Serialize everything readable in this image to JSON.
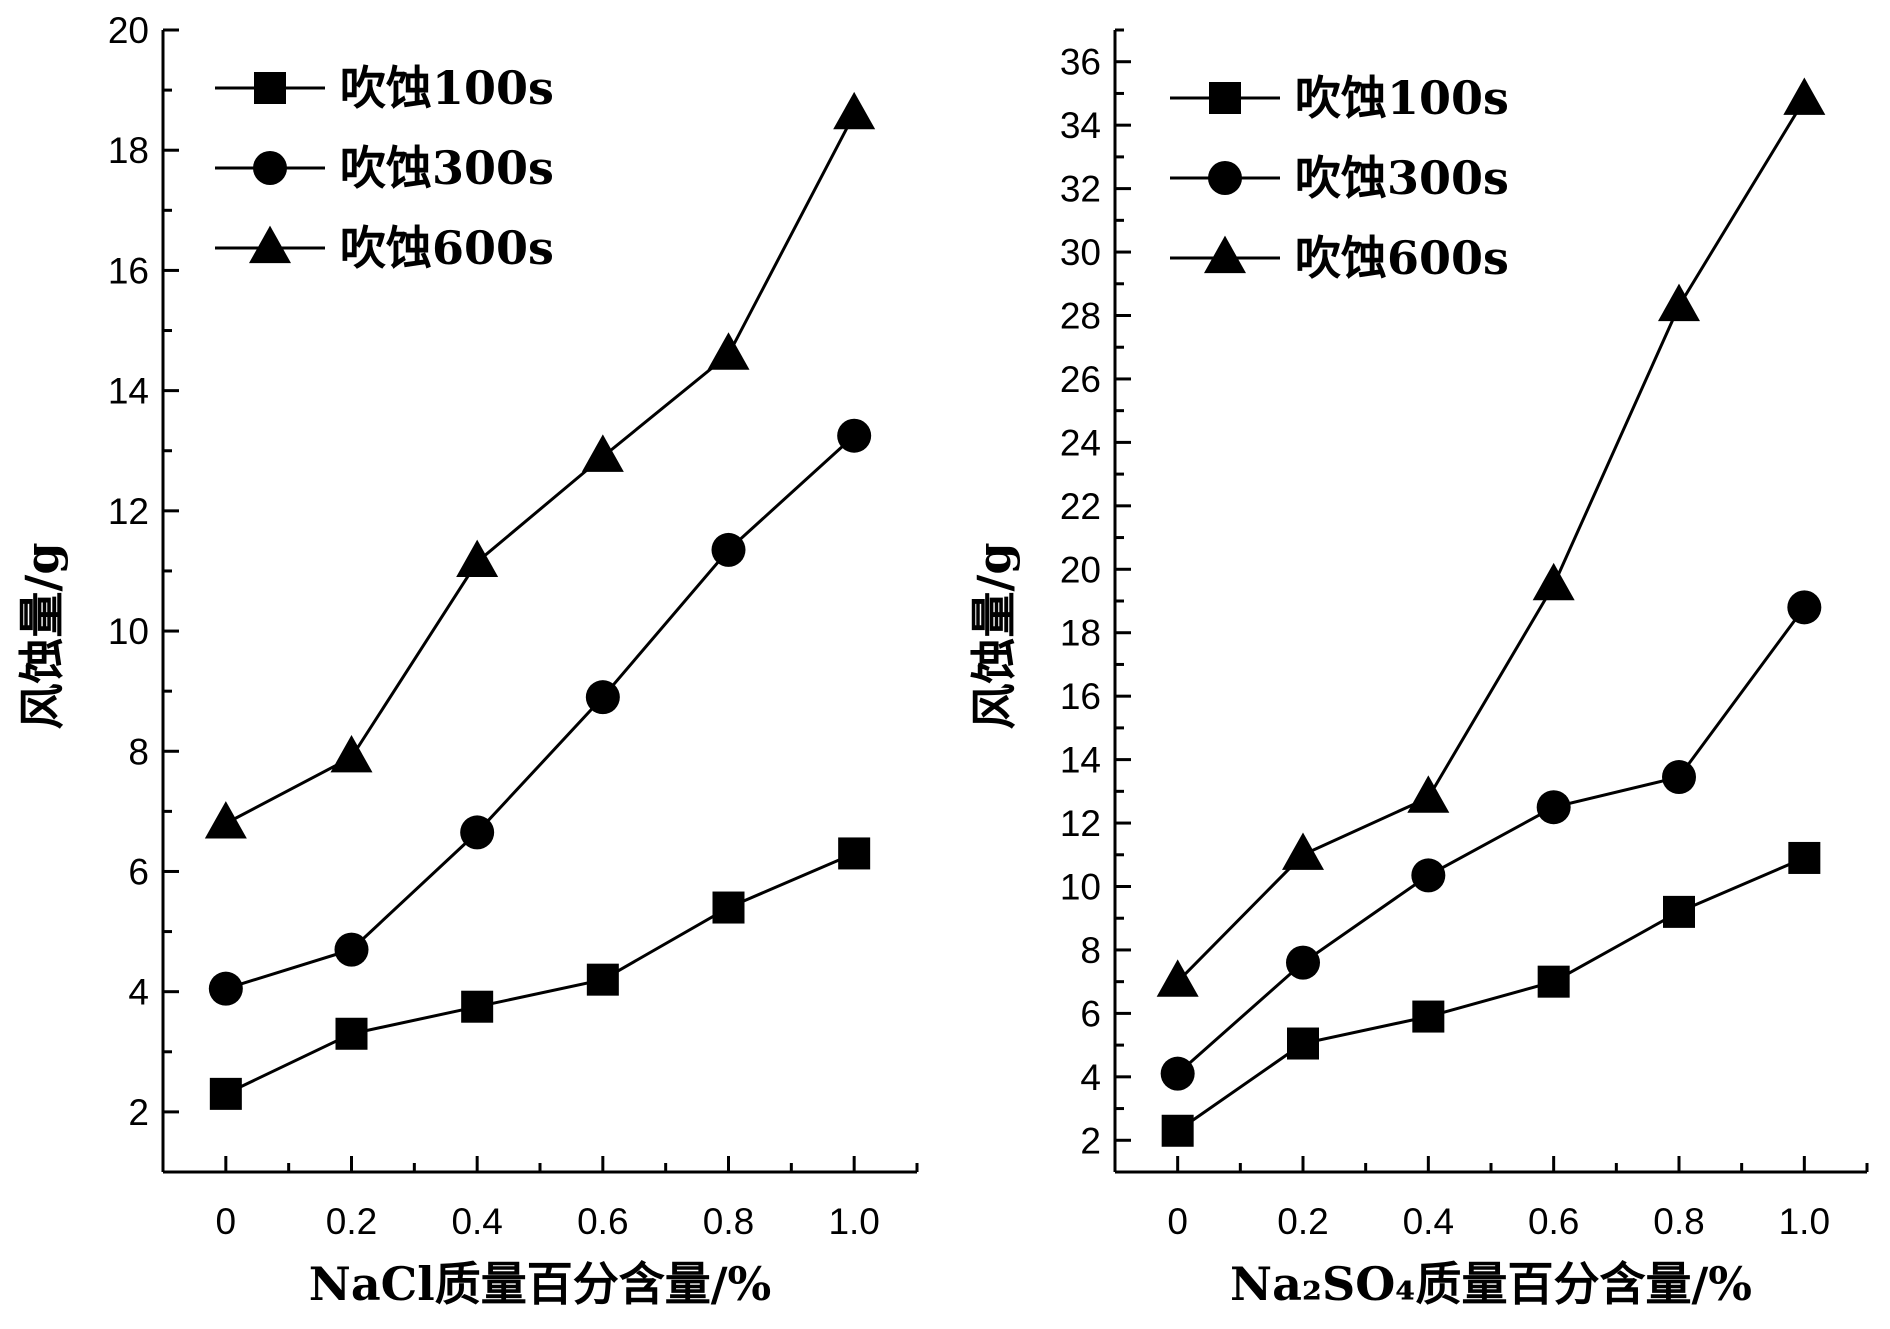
{
  "chart_data": [
    {
      "type": "line",
      "xlabel": "NaCl质量百分含量/%",
      "ylabel": "风蚀量/g",
      "xlim": [
        -0.1,
        1.1
      ],
      "ylim": [
        1,
        20
      ],
      "x_ticks": [
        0,
        0.2,
        0.4,
        0.6,
        0.8,
        1.0
      ],
      "x_tick_labels": [
        "0",
        "0.2",
        "0.4",
        "0.6",
        "0.8",
        "1.0"
      ],
      "y_ticks": [
        2,
        4,
        6,
        8,
        10,
        12,
        14,
        16,
        18,
        20
      ],
      "y_tick_labels": [
        "2",
        "4",
        "6",
        "8",
        "10",
        "12",
        "14",
        "16",
        "18",
        "20"
      ],
      "legend_position": "top-left",
      "grid": false,
      "x": [
        0,
        0.2,
        0.4,
        0.6,
        0.8,
        1.0
      ],
      "series": [
        {
          "name": "吹蚀100s",
          "marker": "square",
          "values": [
            2.3,
            3.3,
            3.75,
            4.2,
            5.4,
            6.3
          ]
        },
        {
          "name": "吹蚀300s",
          "marker": "circle",
          "values": [
            4.05,
            4.7,
            6.65,
            8.9,
            11.35,
            13.25
          ]
        },
        {
          "name": "吹蚀600s",
          "marker": "triangle",
          "values": [
            6.8,
            7.9,
            11.15,
            12.9,
            14.6,
            18.6
          ]
        }
      ]
    },
    {
      "type": "line",
      "xlabel": "Na₂SO₄质量百分含量/%",
      "ylabel": "风蚀量/g",
      "xlim": [
        -0.1,
        1.1
      ],
      "ylim": [
        1,
        37
      ],
      "x_ticks": [
        0,
        0.2,
        0.4,
        0.6,
        0.8,
        1.0
      ],
      "x_tick_labels": [
        "0",
        "0.2",
        "0.4",
        "0.6",
        "0.8",
        "1.0"
      ],
      "y_ticks": [
        2,
        4,
        6,
        8,
        10,
        12,
        14,
        16,
        18,
        20,
        22,
        24,
        26,
        28,
        30,
        32,
        34,
        36
      ],
      "y_tick_labels": [
        "2",
        "4",
        "6",
        "8",
        "10",
        "12",
        "14",
        "16",
        "18",
        "20",
        "22",
        "24",
        "26",
        "28",
        "30",
        "32",
        "34",
        "36"
      ],
      "legend_position": "top-left",
      "grid": false,
      "x": [
        0,
        0.2,
        0.4,
        0.6,
        0.8,
        1.0
      ],
      "series": [
        {
          "name": "吹蚀100s",
          "marker": "square",
          "values": [
            2.3,
            5.05,
            5.9,
            7.0,
            9.2,
            10.9
          ]
        },
        {
          "name": "吹蚀300s",
          "marker": "circle",
          "values": [
            4.1,
            7.6,
            10.35,
            12.5,
            13.45,
            18.8
          ]
        },
        {
          "name": "吹蚀600s",
          "marker": "triangle",
          "values": [
            7.0,
            11.0,
            12.8,
            19.5,
            28.3,
            34.8
          ]
        }
      ]
    }
  ]
}
